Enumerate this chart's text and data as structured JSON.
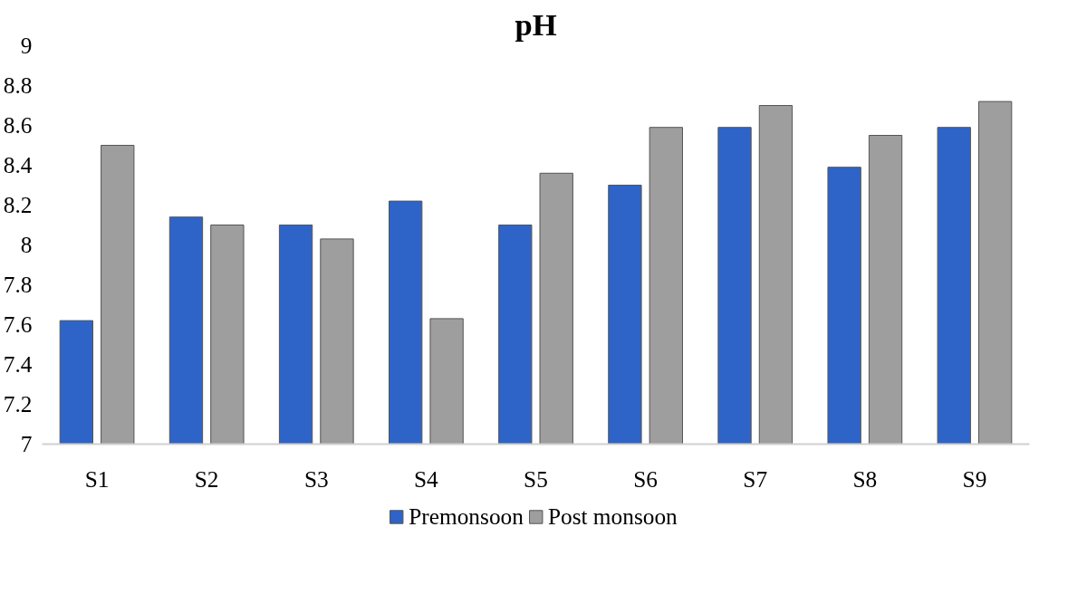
{
  "chart_data": {
    "type": "bar",
    "title": "pH",
    "categories": [
      "S1",
      "S2",
      "S3",
      "S4",
      "S5",
      "S6",
      "S7",
      "S8",
      "S9"
    ],
    "series": [
      {
        "name": "Premonsoon",
        "color": "#2e64c8",
        "values": [
          7.62,
          8.14,
          8.1,
          8.22,
          8.1,
          8.3,
          8.59,
          8.39,
          8.59
        ]
      },
      {
        "name": "Post monsoon",
        "color": "#9e9e9e",
        "values": [
          8.5,
          8.1,
          8.03,
          7.63,
          8.36,
          8.59,
          8.7,
          8.55,
          8.72
        ]
      }
    ],
    "ylim": [
      7,
      9
    ],
    "yticks": [
      7,
      7.2,
      7.4,
      7.6,
      7.8,
      8,
      8.2,
      8.4,
      8.6,
      8.8,
      9
    ],
    "grid": false,
    "legend": "bottom"
  }
}
